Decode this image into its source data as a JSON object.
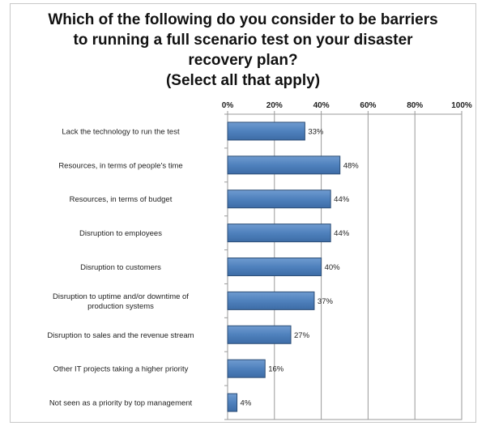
{
  "chart_data": {
    "type": "bar",
    "orientation": "horizontal",
    "title": "Which of the following do you consider to be barriers\nto running a full scenario test on your disaster\nrecovery plan?\n(Select all that apply)",
    "categories": [
      "Lack the technology to run the test",
      "Resources, in terms of people's time",
      "Resources, in terms of budget",
      "Disruption to employees",
      "Disruption to customers",
      "Disruption to uptime and/or downtime of production systems",
      "Disruption to sales and the revenue stream",
      "Other IT projects taking a higher priority",
      "Not seen as a priority by top management"
    ],
    "values": [
      33,
      48,
      44,
      44,
      40,
      37,
      27,
      16,
      4
    ],
    "data_labels": [
      "33%",
      "48%",
      "44%",
      "44%",
      "40%",
      "37%",
      "27%",
      "16%",
      "4%"
    ],
    "xlim": [
      0,
      100
    ],
    "x_ticks": [
      "0%",
      "20%",
      "40%",
      "60%",
      "80%",
      "100%"
    ],
    "x_tick_values": [
      0,
      20,
      40,
      60,
      80,
      100
    ],
    "xaxis_position": "top",
    "grid": true,
    "bar_color": "#4f81bd",
    "bar_edge_color": "#2c4d75"
  }
}
